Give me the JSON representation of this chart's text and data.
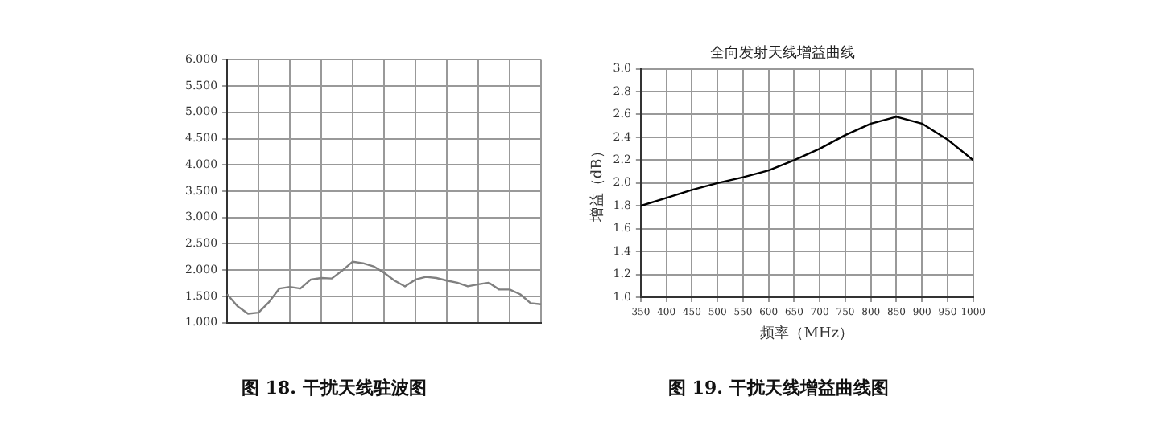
{
  "chart_data": [
    {
      "type": "line",
      "categories": [
        null,
        null,
        null,
        null,
        null,
        null,
        null,
        null,
        null,
        null,
        null,
        null,
        null,
        null,
        null,
        null,
        null,
        null,
        null,
        null,
        null,
        null,
        null,
        null,
        null,
        null,
        null,
        null,
        null,
        null,
        null
      ],
      "values": [
        1.54,
        1.31,
        1.17,
        1.19,
        1.39,
        1.65,
        1.68,
        1.65,
        1.82,
        1.85,
        1.84,
        1.99,
        2.16,
        2.13,
        2.07,
        1.95,
        1.8,
        1.69,
        1.82,
        1.87,
        1.85,
        1.8,
        1.76,
        1.69,
        1.73,
        1.76,
        1.63,
        1.63,
        1.54,
        1.37,
        1.35
      ],
      "color": "#808080",
      "ylim": [
        1,
        6
      ],
      "yticks": [
        {
          "value": 1,
          "label": "1.000"
        },
        {
          "value": 1.5,
          "label": "1.500"
        },
        {
          "value": 2,
          "label": "2.000"
        },
        {
          "value": 2.5,
          "label": "2.500"
        },
        {
          "value": 3,
          "label": "3.000"
        },
        {
          "value": 3.5,
          "label": "3.500"
        },
        {
          "value": 4,
          "label": "4.000"
        },
        {
          "value": 4.5,
          "label": "4.500"
        },
        {
          "value": 5,
          "label": "5.000"
        },
        {
          "value": 5.5,
          "label": "5.500"
        },
        {
          "value": 6,
          "label": "6.000"
        }
      ],
      "grid": true,
      "tick_labels": "y",
      "annotations": [
        "图 18. 干扰天线驻波图"
      ]
    },
    {
      "type": "line",
      "title": "全向发射天线增益曲线",
      "xlabel": "频率（MHz）",
      "ylabel": "增益（dB）",
      "x": [
        350,
        400,
        450,
        500,
        550,
        600,
        650,
        700,
        750,
        800,
        850,
        900,
        950,
        1000
      ],
      "values": [
        1.8,
        1.87,
        1.94,
        2.0,
        2.05,
        2.11,
        2.2,
        2.3,
        2.42,
        2.52,
        2.58,
        2.52,
        2.38,
        2.2
      ],
      "color": "#000000",
      "xlim": [
        350,
        1000
      ],
      "xticks": [
        350,
        400,
        450,
        500,
        550,
        600,
        650,
        700,
        750,
        800,
        850,
        900,
        950,
        1000
      ],
      "ylim": [
        1,
        3
      ],
      "yticks": [
        {
          "value": 1,
          "label": "1.0"
        },
        {
          "value": 1.2,
          "label": "1.2"
        },
        {
          "value": 1.4,
          "label": "1.4"
        },
        {
          "value": 1.6,
          "label": "1.6"
        },
        {
          "value": 1.8,
          "label": "1.8"
        },
        {
          "value": 2,
          "label": "2.0"
        },
        {
          "value": 2.2,
          "label": "2.2"
        },
        {
          "value": 2.4,
          "label": "2.4"
        },
        {
          "value": 2.6,
          "label": "2.6"
        },
        {
          "value": 2.8,
          "label": "2.8"
        },
        {
          "value": 3,
          "label": "3.0"
        }
      ],
      "grid": true,
      "annotations": [
        "图 19. 干扰天线增益曲线图"
      ]
    }
  ]
}
